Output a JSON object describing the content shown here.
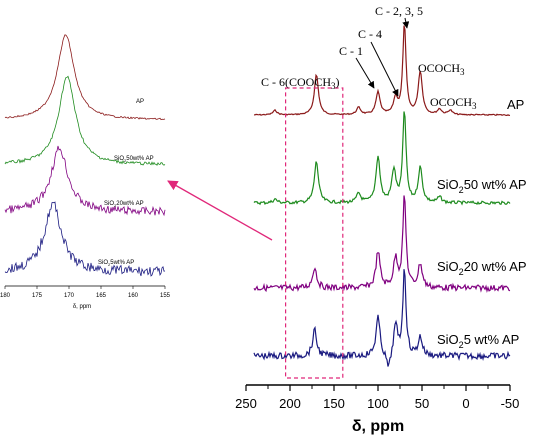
{
  "chart_data": [
    {
      "type": "line",
      "panel": "main",
      "xlabel": "δ, ppm",
      "x_ticks": [
        250,
        200,
        150,
        100,
        50,
        0,
        -50
      ],
      "xlim": [
        250,
        -50
      ],
      "x_reversed": true,
      "series": [
        {
          "name": "AP",
          "color": "#8B1A1A",
          "peaks": [
            [
              217,
              0.05
            ],
            [
              170,
              0.45
            ],
            [
              122,
              0.08
            ],
            [
              100,
              0.25
            ],
            [
              80,
              0.18
            ],
            [
              70,
              1.0
            ],
            [
              52,
              0.48
            ],
            [
              30,
              0.06
            ],
            [
              18,
              0.05
            ]
          ]
        },
        {
          "name": "SiO2 50 wt% AP",
          "color": "#1E8B1E",
          "peaks": [
            [
              217,
              0.04
            ],
            [
              170,
              0.45
            ],
            [
              122,
              0.1
            ],
            [
              100,
              0.5
            ],
            [
              82,
              0.35
            ],
            [
              70,
              1.0
            ],
            [
              52,
              0.38
            ],
            [
              30,
              0.06
            ]
          ]
        },
        {
          "name": "SiO2 20 wt% AP",
          "color": "#800080",
          "peaks": [
            [
              172,
              0.22
            ],
            [
              100,
              0.38
            ],
            [
              80,
              0.3
            ],
            [
              70,
              0.95
            ],
            [
              52,
              0.25
            ]
          ]
        },
        {
          "name": "SiO2 5 wt% AP",
          "color": "#1A1A80",
          "peaks": [
            [
              172,
              0.3
            ],
            [
              100,
              0.45
            ],
            [
              88,
              -0.2
            ],
            [
              80,
              0.35
            ],
            [
              70,
              1.0
            ],
            [
              52,
              0.22
            ]
          ]
        }
      ],
      "annotations": {
        "c235": "C - 2, 3, 5",
        "c4": "C - 4",
        "c1": "C - 1",
        "c6": "C - 6(COOCH",
        "c6_sub": "3",
        "c6_close": ")",
        "ococh3_a": "OCOCH",
        "ococh3_b": "OCOCH",
        "sub3": "3"
      },
      "labels": {
        "ap": "AP",
        "si50_pre": "SiO",
        "si50_post": "50 wt% AP",
        "si20_pre": "SiO",
        "si20_post": "20 wt% AP",
        "si5_pre": "SiO",
        "si5_post": "5 wt% AP",
        "sub2": "2"
      },
      "highlight_box_ppm": [
        205,
        140
      ],
      "highlight_color": "#E0287A"
    },
    {
      "type": "line",
      "panel": "inset",
      "xlabel": "δ, ppm",
      "x_ticks": [
        180,
        175,
        170,
        165,
        160,
        155
      ],
      "xlim": [
        180,
        155
      ],
      "x_reversed": true,
      "labels": {
        "ap": "AP",
        "si50": "SiO",
        "si50_post": "50wt% AP",
        "si20": "SiO",
        "si20_post": "20wt% AP",
        "si5": "SiO",
        "si5_post": "5wt% AP",
        "sub2": "2"
      },
      "series": [
        {
          "name": "AP",
          "color": "#8B1A1A",
          "peak_ppm": 170.5,
          "amp": 1.0
        },
        {
          "name": "SiO2 50wt% AP",
          "color": "#1E8B1E",
          "peak_ppm": 170.3,
          "amp": 1.0
        },
        {
          "name": "SiO2 20wt% AP",
          "color": "#800080",
          "peak_ppm": 171.5,
          "amp": 0.85
        },
        {
          "name": "SiO2 5wt% AP",
          "color": "#1A1A80",
          "peak_ppm": 172.5,
          "amp": 0.85
        }
      ]
    }
  ]
}
